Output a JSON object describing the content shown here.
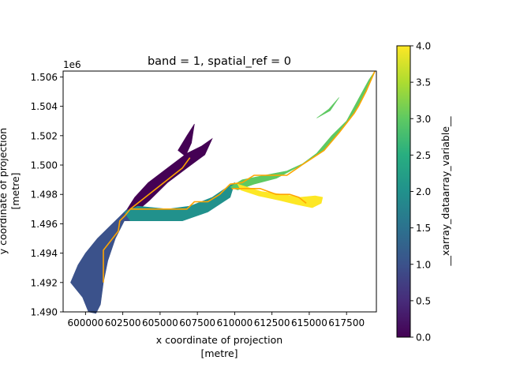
{
  "chart_data": {
    "type": "heatmap",
    "title": "band = 1, spatial_ref = 0",
    "xlabel": "x coordinate of projection",
    "xunit": "[metre]",
    "ylabel": "y coordinate of projection",
    "yunit": "[metre]",
    "y_offset_label": "1e6",
    "xlim": [
      598500,
      619500
    ],
    "ylim": [
      1.49,
      1.5064
    ],
    "x_ticks": [
      600000,
      602500,
      605000,
      607500,
      610000,
      612500,
      615000,
      617500
    ],
    "x_tick_labels": [
      "600000",
      "602500",
      "605000",
      "607500",
      "610000",
      "612500",
      "615000",
      "617500"
    ],
    "y_ticks": [
      1.49,
      1.492,
      1.494,
      1.496,
      1.498,
      1.5,
      1.502,
      1.504,
      1.506
    ],
    "y_tick_labels": [
      "1.490",
      "1.492",
      "1.494",
      "1.496",
      "1.498",
      "1.500",
      "1.502",
      "1.504",
      "1.506"
    ],
    "colorbar": {
      "label": "__xarray_dataarray_variable__",
      "min": 0.0,
      "max": 4.0,
      "ticks": [
        0.0,
        0.5,
        1.0,
        1.5,
        2.0,
        2.5,
        3.0,
        3.5,
        4.0
      ],
      "tick_labels": [
        "0.0",
        "0.5",
        "1.0",
        "1.5",
        "2.0",
        "2.5",
        "3.0",
        "3.5",
        "4.0"
      ],
      "colormap": "viridis"
    },
    "regions": [
      {
        "value": 1.0,
        "color": "#3b528b",
        "polygon": [
          [
            599000,
            1.492
          ],
          [
            599500,
            1.4932
          ],
          [
            600000,
            1.494
          ],
          [
            600800,
            1.495
          ],
          [
            601600,
            1.4958
          ],
          [
            602400,
            1.4966
          ],
          [
            603000,
            1.4972
          ],
          [
            603100,
            1.4962
          ],
          [
            602600,
            1.4962
          ],
          [
            602000,
            1.495
          ],
          [
            601500,
            1.4935
          ],
          [
            601200,
            1.492
          ],
          [
            601000,
            1.4905
          ],
          [
            600700,
            1.4899
          ],
          [
            600200,
            1.49
          ],
          [
            599800,
            1.491
          ]
        ]
      },
      {
        "value": 0.0,
        "color": "#440154",
        "polygon": [
          [
            602800,
            1.497
          ],
          [
            603300,
            1.4978
          ],
          [
            604200,
            1.4988
          ],
          [
            605500,
            1.4998
          ],
          [
            606800,
            1.5008
          ],
          [
            607800,
            1.5013
          ],
          [
            608500,
            1.5018
          ],
          [
            608000,
            1.5007
          ],
          [
            606800,
            1.4998
          ],
          [
            605500,
            1.4988
          ],
          [
            604300,
            1.4976
          ],
          [
            603500,
            1.4969
          ]
        ]
      },
      {
        "value": 0.0,
        "color": "#440154",
        "polygon": [
          [
            606200,
            1.501
          ],
          [
            606800,
            1.502
          ],
          [
            607300,
            1.5028
          ],
          [
            607100,
            1.5015
          ],
          [
            606700,
            1.5006
          ]
        ]
      },
      {
        "value": 2.0,
        "color": "#21918c",
        "polygon": [
          [
            602600,
            1.4968
          ],
          [
            603500,
            1.4972
          ],
          [
            605500,
            1.497
          ],
          [
            607000,
            1.4972
          ],
          [
            608500,
            1.4978
          ],
          [
            609500,
            1.4985
          ],
          [
            610000,
            1.4988
          ],
          [
            609700,
            1.4978
          ],
          [
            608200,
            1.4968
          ],
          [
            606500,
            1.4962
          ],
          [
            604500,
            1.4962
          ],
          [
            603000,
            1.4962
          ]
        ]
      },
      {
        "value": 3.0,
        "color": "#5ec962",
        "polygon": [
          [
            609700,
            1.4985
          ],
          [
            610500,
            1.499
          ],
          [
            612000,
            1.4993
          ],
          [
            613500,
            1.4996
          ],
          [
            614800,
            1.5002
          ],
          [
            616000,
            1.501
          ],
          [
            617000,
            1.5022
          ],
          [
            618000,
            1.5035
          ],
          [
            618800,
            1.505
          ],
          [
            619400,
            1.5064
          ],
          [
            619000,
            1.5058
          ],
          [
            618300,
            1.5045
          ],
          [
            617500,
            1.503
          ],
          [
            616500,
            1.502
          ],
          [
            615500,
            1.5008
          ],
          [
            614300,
            1.4999
          ],
          [
            612800,
            1.4991
          ],
          [
            611300,
            1.4987
          ],
          [
            610200,
            1.4983
          ]
        ]
      },
      {
        "value": 3.0,
        "color": "#5ec962",
        "polygon": [
          [
            615500,
            1.5032
          ],
          [
            616300,
            1.5038
          ],
          [
            617000,
            1.5046
          ],
          [
            616400,
            1.5037
          ]
        ]
      },
      {
        "value": 4.0,
        "color": "#fde725",
        "polygon": [
          [
            610200,
            1.4987
          ],
          [
            611800,
            1.4982
          ],
          [
            613200,
            1.498
          ],
          [
            614400,
            1.4978
          ],
          [
            615400,
            1.4979
          ],
          [
            615900,
            1.4978
          ],
          [
            615800,
            1.4974
          ],
          [
            615200,
            1.4971
          ],
          [
            614200,
            1.4973
          ],
          [
            613000,
            1.4976
          ],
          [
            611600,
            1.4979
          ],
          [
            610400,
            1.4983
          ]
        ]
      }
    ],
    "lines": [
      {
        "color": "#ffa500",
        "points": [
          [
            601200,
            1.492
          ],
          [
            601200,
            1.4942
          ],
          [
            602200,
            1.4955
          ],
          [
            602300,
            1.4962
          ],
          [
            602600,
            1.4965
          ],
          [
            603000,
            1.497
          ],
          [
            604500,
            1.4982
          ],
          [
            605500,
            1.499
          ],
          [
            606500,
            1.4998
          ],
          [
            607000,
            1.5005
          ]
        ]
      },
      {
        "color": "#ffa500",
        "points": [
          [
            603000,
            1.497
          ],
          [
            606800,
            1.497
          ],
          [
            607300,
            1.4975
          ],
          [
            608200,
            1.4975
          ],
          [
            609000,
            1.498
          ],
          [
            609700,
            1.4987
          ],
          [
            610500,
            1.4988
          ],
          [
            611300,
            1.4993
          ],
          [
            613500,
            1.4993
          ],
          [
            614500,
            1.5
          ],
          [
            616000,
            1.501
          ],
          [
            617000,
            1.5022
          ],
          [
            618000,
            1.5035
          ],
          [
            618300,
            1.504
          ],
          [
            618800,
            1.505
          ],
          [
            619400,
            1.5064
          ]
        ]
      },
      {
        "color": "#ffa500",
        "points": [
          [
            609800,
            1.4984
          ],
          [
            611700,
            1.4984
          ],
          [
            612800,
            1.498
          ],
          [
            613700,
            1.498
          ],
          [
            614300,
            1.4978
          ],
          [
            614800,
            1.4974
          ]
        ]
      }
    ]
  }
}
